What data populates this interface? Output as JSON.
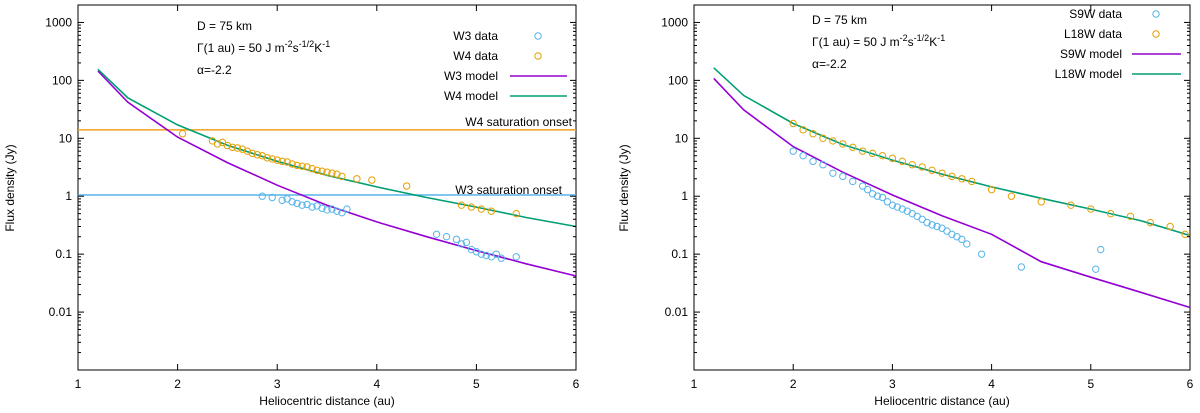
{
  "chart_data": [
    {
      "type": "scatter",
      "panel": "left",
      "xlabel": "Heliocentric distance (au)",
      "ylabel": "Flux density (Jy)",
      "xlim": [
        1,
        6
      ],
      "ylim": [
        0.001,
        2000
      ],
      "yscale": "log",
      "xticks": [
        "1",
        "2",
        "3",
        "4",
        "5",
        "6"
      ],
      "yticks": [
        "0.01",
        "0.1",
        "1",
        "10",
        "100",
        "1000"
      ],
      "annotations": {
        "diameter": "D = 75 km",
        "gamma_prefix": "Γ(1 au) = 50 J m",
        "gamma_exp1": "-2",
        "gamma_mid": "s",
        "gamma_exp2": "-1/2",
        "gamma_unit": "K",
        "gamma_exp3": "-1",
        "alpha": "α=-2.2"
      },
      "hlines": [
        {
          "y": 14,
          "color": "#f0a020",
          "label": "W4 saturation onset"
        },
        {
          "y": 1.05,
          "color": "#56b4e9",
          "label": "W3 saturation onset"
        }
      ],
      "legend": [
        "W3 data",
        "W4 data",
        "W3 model",
        "W4 model"
      ],
      "legend_position": "top-right",
      "series": [
        {
          "name": "W3 model",
          "kind": "line",
          "color": "#9400d3",
          "x": [
            1.2,
            1.5,
            2.0,
            2.5,
            3.0,
            3.5,
            4.0,
            4.5,
            5.0,
            5.5,
            6.0
          ],
          "y": [
            145,
            42,
            10.5,
            3.8,
            1.55,
            0.7,
            0.36,
            0.2,
            0.115,
            0.068,
            0.042
          ]
        },
        {
          "name": "W4 model",
          "kind": "line",
          "color": "#009e73",
          "x": [
            1.2,
            1.5,
            2.0,
            2.5,
            3.0,
            3.5,
            4.0,
            4.5,
            5.0,
            5.5,
            6.0
          ],
          "y": [
            155,
            50,
            17,
            7.6,
            4.0,
            2.3,
            1.45,
            0.95,
            0.65,
            0.43,
            0.3
          ]
        },
        {
          "name": "W3 data",
          "kind": "scatter",
          "color": "#56b4e9",
          "x": [
            2.85,
            2.95,
            3.05,
            3.1,
            3.15,
            3.2,
            3.25,
            3.3,
            3.35,
            3.4,
            3.45,
            3.5,
            3.55,
            3.6,
            3.65,
            3.7,
            4.6,
            4.7,
            4.8,
            4.85,
            4.9,
            4.95,
            5.0,
            5.05,
            5.1,
            5.15,
            5.2,
            5.25,
            5.4
          ],
          "y": [
            1.0,
            0.95,
            0.85,
            0.9,
            0.8,
            0.75,
            0.7,
            0.72,
            0.65,
            0.68,
            0.62,
            0.58,
            0.6,
            0.55,
            0.52,
            0.6,
            0.22,
            0.2,
            0.18,
            0.15,
            0.16,
            0.12,
            0.11,
            0.1,
            0.095,
            0.09,
            0.1,
            0.085,
            0.09
          ]
        },
        {
          "name": "W4 data",
          "kind": "scatter",
          "color": "#e69f00",
          "x": [
            2.05,
            2.35,
            2.4,
            2.45,
            2.5,
            2.55,
            2.6,
            2.65,
            2.7,
            2.75,
            2.8,
            2.85,
            2.9,
            2.95,
            3.0,
            3.05,
            3.1,
            3.15,
            3.2,
            3.25,
            3.3,
            3.35,
            3.4,
            3.45,
            3.5,
            3.55,
            3.6,
            3.65,
            3.8,
            3.95,
            4.3,
            4.85,
            4.95,
            5.05,
            5.15,
            5.4
          ],
          "y": [
            12,
            9,
            8,
            8.5,
            7.5,
            7,
            6.8,
            6.5,
            6,
            5.5,
            5.2,
            5,
            4.6,
            4.4,
            4.2,
            4,
            3.9,
            3.6,
            3.4,
            3.3,
            3.2,
            3.0,
            2.8,
            2.7,
            2.6,
            2.5,
            2.4,
            2.2,
            2.0,
            1.9,
            1.5,
            0.7,
            0.65,
            0.6,
            0.55,
            0.5
          ]
        }
      ]
    },
    {
      "type": "scatter",
      "panel": "right",
      "xlabel": "Heliocentric distance (au)",
      "ylabel": "Flux density (Jy)",
      "xlim": [
        1,
        6
      ],
      "ylim": [
        0.001,
        2000
      ],
      "yscale": "log",
      "xticks": [
        "1",
        "2",
        "3",
        "4",
        "5",
        "6"
      ],
      "yticks": [
        "0.01",
        "0.1",
        "1",
        "10",
        "100",
        "1000"
      ],
      "annotations": {
        "diameter": "D = 75 km",
        "gamma_prefix": "Γ(1 au) = 50 J m",
        "gamma_exp1": "-2",
        "gamma_mid": "s",
        "gamma_exp2": "-1/2",
        "gamma_unit": "K",
        "gamma_exp3": "-1",
        "alpha": "α=-2.2"
      },
      "legend": [
        "S9W data",
        "L18W data",
        "S9W model",
        "L18W model"
      ],
      "legend_position": "top-right",
      "series": [
        {
          "name": "S9W model",
          "kind": "line",
          "color": "#9400d3",
          "x": [
            1.2,
            1.5,
            2.0,
            2.5,
            3.0,
            3.5,
            4.0,
            4.5,
            5.0,
            5.5,
            6.0
          ],
          "y": [
            108,
            31,
            7.2,
            2.6,
            1.05,
            0.46,
            0.22,
            0.074,
            0.04,
            0.022,
            0.012
          ]
        },
        {
          "name": "L18W model",
          "kind": "line",
          "color": "#009e73",
          "x": [
            1.2,
            1.5,
            2.0,
            2.5,
            3.0,
            3.5,
            4.0,
            4.5,
            5.0,
            5.5,
            6.0
          ],
          "y": [
            165,
            55,
            18,
            7.8,
            4.2,
            2.4,
            1.45,
            0.92,
            0.6,
            0.38,
            0.21
          ]
        },
        {
          "name": "S9W data",
          "kind": "scatter",
          "color": "#56b4e9",
          "x": [
            2.0,
            2.1,
            2.2,
            2.3,
            2.4,
            2.5,
            2.6,
            2.7,
            2.75,
            2.8,
            2.85,
            2.9,
            2.95,
            3.0,
            3.05,
            3.1,
            3.15,
            3.2,
            3.25,
            3.3,
            3.35,
            3.4,
            3.45,
            3.5,
            3.55,
            3.6,
            3.65,
            3.7,
            3.75,
            3.9,
            4.3,
            5.05,
            5.1
          ],
          "y": [
            6,
            5,
            4,
            3.5,
            2.5,
            2.2,
            1.8,
            1.5,
            1.3,
            1.1,
            1.0,
            0.95,
            0.8,
            0.7,
            0.65,
            0.6,
            0.55,
            0.5,
            0.45,
            0.4,
            0.35,
            0.32,
            0.3,
            0.28,
            0.25,
            0.22,
            0.2,
            0.18,
            0.15,
            0.1,
            0.06,
            0.055,
            0.12
          ]
        },
        {
          "name": "L18W data",
          "kind": "scatter",
          "color": "#e69f00",
          "x": [
            2.0,
            2.1,
            2.2,
            2.3,
            2.4,
            2.5,
            2.6,
            2.7,
            2.8,
            2.9,
            3.0,
            3.1,
            3.2,
            3.3,
            3.4,
            3.5,
            3.6,
            3.7,
            3.8,
            4.0,
            4.2,
            4.5,
            4.8,
            5.0,
            5.2,
            5.4,
            5.6,
            5.8,
            5.95
          ],
          "y": [
            18,
            14,
            12,
            10,
            9,
            8,
            7,
            6,
            5.5,
            5,
            4.5,
            4,
            3.5,
            3.2,
            2.8,
            2.5,
            2.2,
            2.0,
            1.8,
            1.3,
            1.0,
            0.8,
            0.7,
            0.6,
            0.5,
            0.45,
            0.35,
            0.3,
            0.22
          ]
        }
      ]
    }
  ]
}
